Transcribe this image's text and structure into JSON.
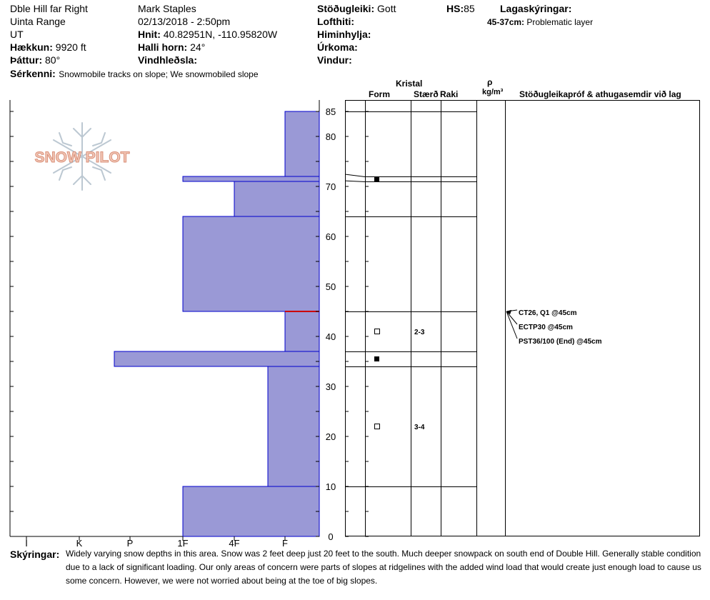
{
  "header": {
    "location": "Dble Hill far Right",
    "range": "Uinta Range",
    "state": "UT",
    "elevation_label": "Hækkun:",
    "elevation": "9920 ft",
    "aspect_label": "Þáttur:",
    "aspect": "80°",
    "features_label": "Sérkenni:",
    "features": "Snowmobile tracks on slope; We snowmobiled slope",
    "observer": "Mark Staples",
    "datetime": "02/13/2018 - 2:50pm",
    "coords_label": "Hnit:",
    "coords": "40.82951N, -110.95820W",
    "slope_label": "Halli horn:",
    "slope": "24°",
    "wind_loading_label": "Vindhleðsla:",
    "stability_label": "Stöðugleiki:",
    "stability": "Gott",
    "air_temp_label": "Lofthiti:",
    "sky_label": "Himinhylja:",
    "precip_label": "Úrkoma:",
    "wind_label": "Vindur:",
    "hs_label": "HS:",
    "hs": "85",
    "legend_label": "Lagaskýringar:",
    "legend_range": "45-37cm:",
    "legend_text": "Problematic layer"
  },
  "logo_text": "SNOW PILOT",
  "columns": {
    "kristal": "Kristal",
    "form": "Form",
    "size": "Stærð",
    "moisture": "Raki",
    "rho": "ρ",
    "density_unit": "kg/m³",
    "tests": "Stöðugleikapróf & athugasemdir við lag"
  },
  "comments_label": "Skýringar:",
  "comments": [
    "Widely varying snow depths in this area. Snow was 2 feet deep just 20 feet to the south. Much deeper snowpack on south end of Double Hill. Generally stable condition",
    "due to a lack of significant loading. Our only areas of concern were parts of slopes at ridgelines with the added wind load that would create just enough load to cause us",
    "some concern. However, we were not worried about being at the toe of big slopes."
  ],
  "chart_data": {
    "type": "bar",
    "orientation": "horizontal",
    "description_axis": "hand hardness vs height (cm)",
    "hardness_ticks": [
      "I",
      "K",
      "P",
      "1F",
      "4F",
      "F"
    ],
    "y_ticks": [
      0,
      10,
      20,
      30,
      40,
      50,
      60,
      70,
      80,
      85
    ],
    "ylim": [
      0,
      85
    ],
    "layers": [
      {
        "top": 85,
        "bottom": 72,
        "hardness": "F"
      },
      {
        "top": 72,
        "bottom": 71,
        "hardness": "1F"
      },
      {
        "top": 71,
        "bottom": 64,
        "hardness": "4F"
      },
      {
        "top": 64,
        "bottom": 45,
        "hardness": "1F"
      },
      {
        "top": 45,
        "bottom": 37,
        "hardness": "F"
      },
      {
        "top": 37,
        "bottom": 34,
        "hardness": "P+"
      },
      {
        "top": 34,
        "bottom": 10,
        "hardness": "F+"
      },
      {
        "top": 10,
        "bottom": 0,
        "hardness": "1F"
      }
    ],
    "layer_lines": [
      85,
      72,
      71,
      64,
      45,
      37,
      34,
      10
    ],
    "problem_layer": 45,
    "crystals": [
      {
        "height": 71.5,
        "symbol": "■",
        "size": ""
      },
      {
        "height": 41,
        "symbol": "□",
        "size": "2-3"
      },
      {
        "height": 35.5,
        "symbol": "■",
        "size": ""
      },
      {
        "height": 22,
        "symbol": "□",
        "size": "3-4"
      }
    ],
    "tests": [
      "CT26, Q1 @45cm",
      "ECTP30 @45cm",
      "PST36/100 (End) @45cm"
    ],
    "colors": {
      "fill": "#9a99d6",
      "edge": "#0000cc",
      "problem": "#cc0000"
    }
  }
}
